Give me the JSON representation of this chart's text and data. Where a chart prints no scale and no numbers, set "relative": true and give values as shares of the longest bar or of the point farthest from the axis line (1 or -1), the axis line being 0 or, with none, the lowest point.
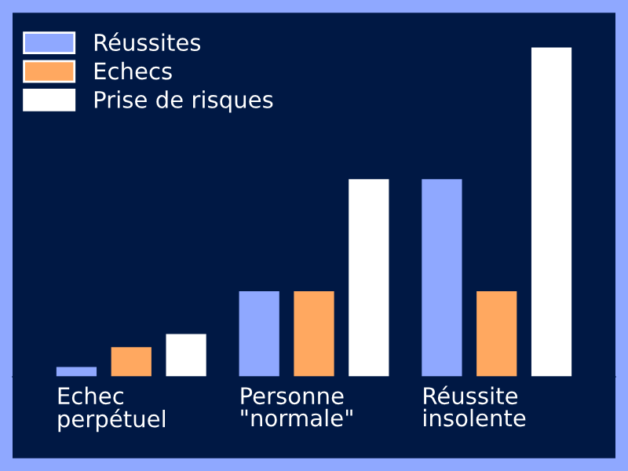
{
  "chart_data": {
    "type": "bar",
    "relative": true,
    "categories": [
      "Echec perpétuel",
      "Personne \"normale\"",
      "Réussite insolente"
    ],
    "series": [
      {
        "name": "Réussites",
        "color": "#8fa8ff",
        "values": [
          0.03,
          0.26,
          0.6
        ]
      },
      {
        "name": "Echecs",
        "color": "#ffa860",
        "values": [
          0.09,
          0.26,
          0.26
        ]
      },
      {
        "name": "Prise de risques",
        "color": "#ffffff",
        "values": [
          0.13,
          0.6,
          1
        ]
      }
    ],
    "legend": "top left"
  }
}
